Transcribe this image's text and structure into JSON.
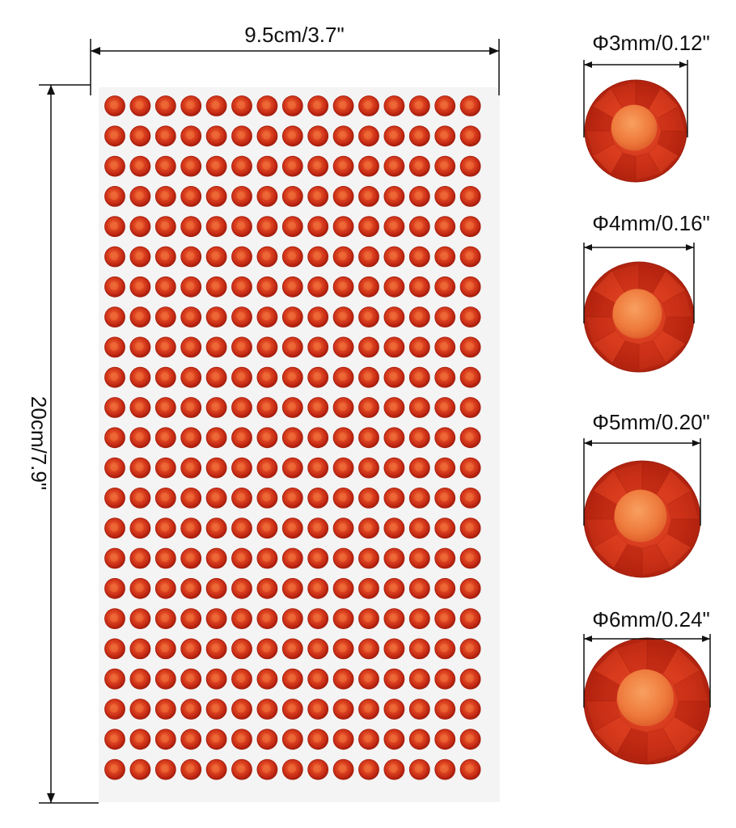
{
  "sheet": {
    "width_label": "9.5cm/3.7\"",
    "height_label": "20cm/7.9\"",
    "rows": 23,
    "columns": 15,
    "sheet_color": "#f4f4f4",
    "gem_color": "#d9321c"
  },
  "sizes": [
    {
      "label": "Φ3mm/0.12\""
    },
    {
      "label": "Φ4mm/0.16\""
    },
    {
      "label": "Φ5mm/0.20\""
    },
    {
      "label": "Φ6mm/0.24\""
    }
  ],
  "colors": {
    "gem_dark": "#a81a0c",
    "gem_mid": "#d9321c",
    "gem_light": "#ef6a3a",
    "gem_center": "#f28a4a"
  }
}
